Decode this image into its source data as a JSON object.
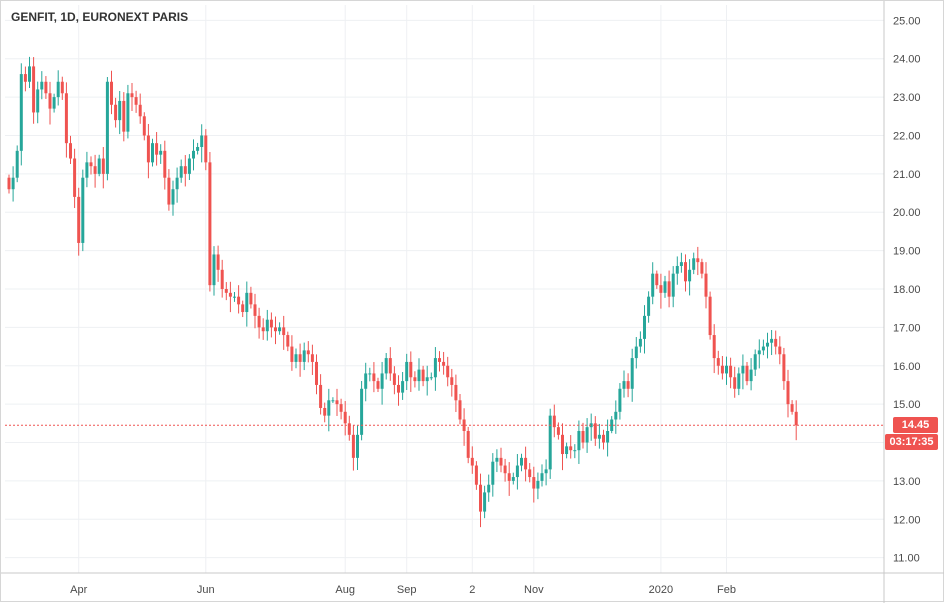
{
  "header": {
    "title": "GENFIT, 1D, EURONEXT PARIS"
  },
  "price_tag": {
    "price": "14.45",
    "countdown": "03:17:35"
  },
  "colors": {
    "up": "#26a69a",
    "down": "#ef5350",
    "grid": "#eef0f3",
    "price_line": "#ef5350"
  },
  "chart_data": {
    "type": "candlestick",
    "title": "GENFIT, 1D, EURONEXT PARIS",
    "ylim": [
      10.6,
      25.4
    ],
    "y_ticks": [
      "25.00",
      "24.00",
      "23.00",
      "22.00",
      "21.00",
      "20.00",
      "19.00",
      "18.00",
      "17.00",
      "16.00",
      "15.00",
      "14.00",
      "13.00",
      "12.00",
      "11.00"
    ],
    "x_ticks": [
      {
        "label": "Apr",
        "i": 17
      },
      {
        "label": "Jun",
        "i": 48
      },
      {
        "label": "Aug",
        "i": 82
      },
      {
        "label": "Sep",
        "i": 97
      },
      {
        "label": "2",
        "i": 113
      },
      {
        "label": "Nov",
        "i": 128
      },
      {
        "label": "2020",
        "i": 159
      },
      {
        "label": "Feb",
        "i": 175
      }
    ],
    "last_price": 14.45,
    "grid": true,
    "closes": [
      20.6,
      20.9,
      21.6,
      23.6,
      23.4,
      23.8,
      22.6,
      23.2,
      23.4,
      23.1,
      22.7,
      23.0,
      23.4,
      23.1,
      21.8,
      21.4,
      20.4,
      19.2,
      20.9,
      21.3,
      21.2,
      21.0,
      21.4,
      21.0,
      23.4,
      22.8,
      22.4,
      22.9,
      22.1,
      23.1,
      23.0,
      22.8,
      22.5,
      22.0,
      21.3,
      21.8,
      21.5,
      21.6,
      20.9,
      20.2,
      20.6,
      20.9,
      21.2,
      21.0,
      21.4,
      21.6,
      21.7,
      22.0,
      21.3,
      18.1,
      18.9,
      18.5,
      18.0,
      17.9,
      17.8,
      17.8,
      17.6,
      17.4,
      17.9,
      17.6,
      17.3,
      17.0,
      16.9,
      17.2,
      17.0,
      16.9,
      17.0,
      16.8,
      16.5,
      16.1,
      16.3,
      16.1,
      16.4,
      16.3,
      16.1,
      15.5,
      14.9,
      14.7,
      15.1,
      15.1,
      15.0,
      14.8,
      14.5,
      14.2,
      13.6,
      14.2,
      15.4,
      15.8,
      15.8,
      15.6,
      15.4,
      15.8,
      16.2,
      15.8,
      15.5,
      15.3,
      15.6,
      16.1,
      15.7,
      15.6,
      15.9,
      15.6,
      15.7,
      15.7,
      16.2,
      16.1,
      16.0,
      15.7,
      15.5,
      15.1,
      14.6,
      14.3,
      13.6,
      13.4,
      12.9,
      12.2,
      12.7,
      12.9,
      13.5,
      13.6,
      13.4,
      13.2,
      13.0,
      13.1,
      13.4,
      13.6,
      13.3,
      13.1,
      12.8,
      13.0,
      13.2,
      13.3,
      14.7,
      14.4,
      14.2,
      13.7,
      13.9,
      13.8,
      13.8,
      14.3,
      14.0,
      14.4,
      14.5,
      14.1,
      14.2,
      14.0,
      14.3,
      14.6,
      14.8,
      15.4,
      15.6,
      15.4,
      16.2,
      16.5,
      16.7,
      17.3,
      17.8,
      18.4,
      18.1,
      17.9,
      18.2,
      17.8,
      18.4,
      18.6,
      18.7,
      18.2,
      18.5,
      18.8,
      18.7,
      18.4,
      17.8,
      16.8,
      16.2,
      16.0,
      15.8,
      16.0,
      15.7,
      15.4,
      15.8,
      16.0,
      15.6,
      15.9,
      16.3,
      16.4,
      16.5,
      16.6,
      16.7,
      16.5,
      16.3,
      15.6,
      15.0,
      14.8,
      14.45
    ],
    "series": [
      {
        "name": "GENFIT",
        "values_ref": "closes"
      }
    ]
  }
}
